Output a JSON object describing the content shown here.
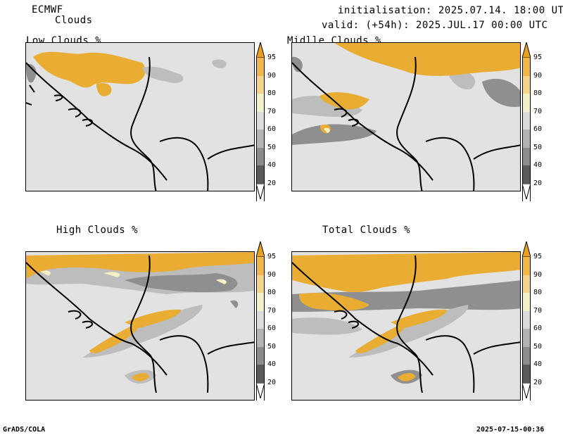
{
  "header": {
    "model": "ECMWF",
    "field": "Clouds",
    "init": "initialisation: 2025.07.14. 18:00 UTC",
    "valid": "valid: (+54h): 2025.JUL.17 00:00 UTC"
  },
  "panels": [
    {
      "title": "Low Clouds %"
    },
    {
      "title": "Midlle Clouds %"
    },
    {
      "title": "High Clouds %"
    },
    {
      "title": "Total Clouds %"
    }
  ],
  "colorbar": {
    "levels": [
      "95",
      "90",
      "80",
      "70",
      "60",
      "50",
      "40",
      "20"
    ],
    "colors": [
      "#e8a020",
      "#efb944",
      "#f5d58a",
      "#f2f2c8",
      "#dcdcdc",
      "#b4b4b4",
      "#8c8c8c",
      "#5a5a5a",
      "#ffffff"
    ]
  },
  "colors": {
    "background": "#e2e2e2",
    "orange": "#e9ad33",
    "light_orange": "#f2cc78",
    "cream": "#f4f0c6",
    "gray1": "#bdbdbd",
    "gray2": "#8f8f8f",
    "gray3": "#606060"
  },
  "footer": {
    "left": "GrADS/COLA",
    "right": "2025-07-15-00:36"
  }
}
